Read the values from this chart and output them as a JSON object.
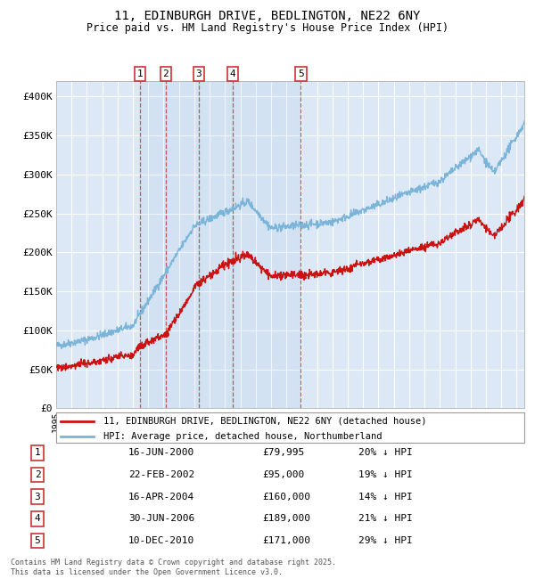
{
  "title": "11, EDINBURGH DRIVE, BEDLINGTON, NE22 6NY",
  "subtitle": "Price paid vs. HM Land Registry's House Price Index (HPI)",
  "background_color": "#ffffff",
  "plot_bg_color": "#dce8f5",
  "hpi_color": "#7ab4d8",
  "price_color": "#cc1111",
  "ylim": [
    0,
    420000
  ],
  "yticks": [
    0,
    50000,
    100000,
    150000,
    200000,
    250000,
    300000,
    350000,
    400000
  ],
  "sale_dates": [
    "16-JUN-2000",
    "22-FEB-2002",
    "16-APR-2004",
    "30-JUN-2006",
    "10-DEC-2010"
  ],
  "sale_prices": [
    79995,
    95000,
    160000,
    189000,
    171000
  ],
  "sale_labels": [
    "1",
    "2",
    "3",
    "4",
    "5"
  ],
  "sale_date_nums": [
    2000.46,
    2002.13,
    2004.29,
    2006.5,
    2010.94
  ],
  "sale_pcts": [
    "20% ↓ HPI",
    "19% ↓ HPI",
    "14% ↓ HPI",
    "21% ↓ HPI",
    "29% ↓ HPI"
  ],
  "sale_amounts": [
    "£79,995",
    "£95,000",
    "£160,000",
    "£189,000",
    "£171,000"
  ],
  "legend_line1": "11, EDINBURGH DRIVE, BEDLINGTON, NE22 6NY (detached house)",
  "legend_line2": "HPI: Average price, detached house, Northumberland",
  "footer": "Contains HM Land Registry data © Crown copyright and database right 2025.\nThis data is licensed under the Open Government Licence v3.0.",
  "xstart": 1995.0,
  "xend": 2025.5
}
